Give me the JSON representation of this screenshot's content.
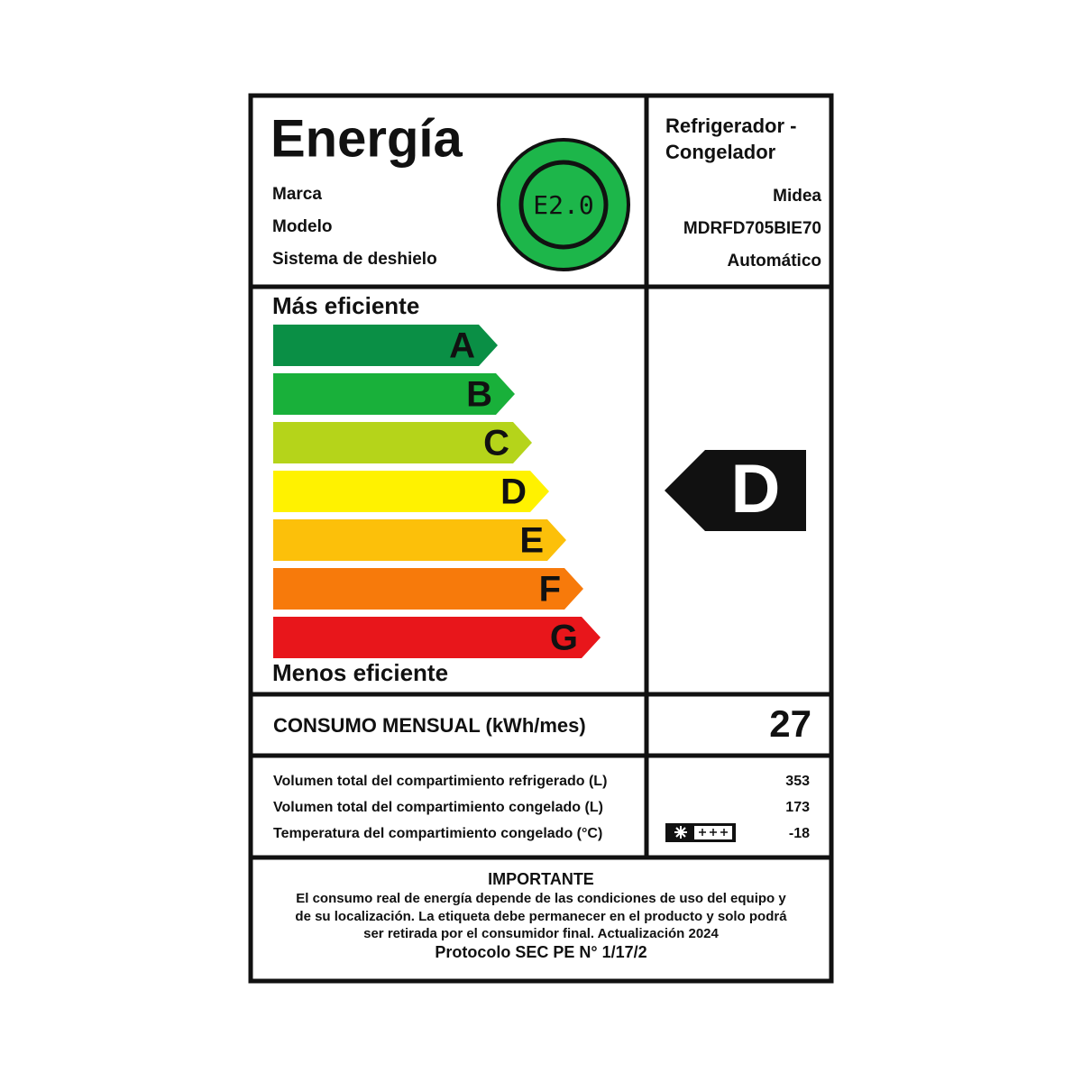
{
  "header": {
    "title": "Energía",
    "badge": "E2.0",
    "fields": [
      {
        "label": "Marca",
        "value": "Midea"
      },
      {
        "label": "Modelo",
        "value": "MDRFD705BIE70"
      },
      {
        "label": "Sistema de deshielo",
        "value": "Automático"
      }
    ],
    "product_type": [
      "Refrigerador -",
      "Congelador"
    ]
  },
  "scale": {
    "top_label": "Más eficiente",
    "bottom_label": "Menos eficiente",
    "classes": [
      {
        "letter": "A",
        "color": "#0a8f45"
      },
      {
        "letter": "B",
        "color": "#19b03a"
      },
      {
        "letter": "C",
        "color": "#b5d41a"
      },
      {
        "letter": "D",
        "color": "#fff200"
      },
      {
        "letter": "E",
        "color": "#fcc00a"
      },
      {
        "letter": "F",
        "color": "#f77a0b"
      },
      {
        "letter": "G",
        "color": "#e8161b"
      }
    ],
    "rating": "D"
  },
  "consumption": {
    "label": "CONSUMO MENSUAL (kWh/mes)",
    "value": "27"
  },
  "specs": [
    {
      "label": "Volumen total del compartimiento refrigerado (L)",
      "value": "353"
    },
    {
      "label": "Volumen total del compartimiento congelado (L)",
      "value": "173"
    },
    {
      "label": "Temperatura del compartimiento congelado (°C)",
      "value": "-18"
    }
  ],
  "important": {
    "title": "IMPORTANTE",
    "lines": [
      "El consumo real de energía depende de las condiciones de uso del equipo y",
      "de su localización. La etiqueta debe permanecer en el producto y solo podrá",
      "ser retirada por el consumidor final. Actualización 2024"
    ],
    "protocol": "Protocolo SEC PE N° 1/17/2"
  }
}
